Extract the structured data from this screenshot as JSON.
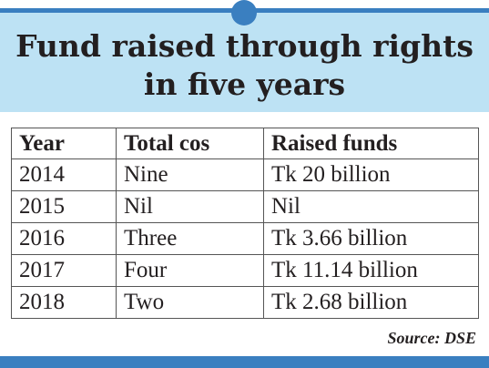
{
  "title": {
    "line1": "Fund raised through rights",
    "line2": "in five years"
  },
  "colors": {
    "accent": "#3a7fc0",
    "header_background": "#bde2f4",
    "text": "#231f20"
  },
  "chart_data": {
    "type": "table",
    "title": "Fund raised through rights in five years",
    "columns": [
      "Year",
      "Total cos",
      "Raised funds"
    ],
    "rows": [
      [
        "2014",
        "Nine",
        "Tk 20 billion"
      ],
      [
        "2015",
        "Nil",
        "Nil"
      ],
      [
        "2016",
        "Three",
        "Tk 3.66 billion"
      ],
      [
        "2017",
        "Four",
        "Tk 11.14 billion"
      ],
      [
        "2018",
        "Two",
        "Tk 2.68 billion"
      ]
    ],
    "source": "Source: DSE"
  }
}
